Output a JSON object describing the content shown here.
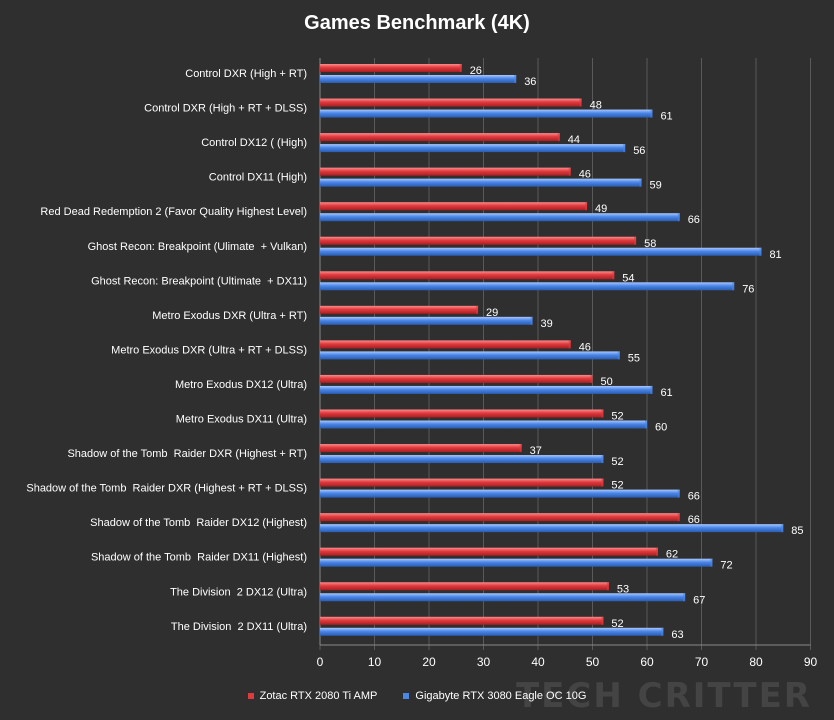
{
  "chart_data": {
    "type": "bar",
    "orientation": "horizontal",
    "title": "Games Benchmark (4K)",
    "xlabel": "",
    "ylabel": "",
    "xlim": [
      0,
      90
    ],
    "xticks": [
      0,
      10,
      20,
      30,
      40,
      50,
      60,
      70,
      80,
      90
    ],
    "grid": "vertical",
    "legend_position": "bottom",
    "categories": [
      "Control DXR (High + RT)",
      "Control DXR (High + RT + DLSS)",
      "Control DX12 ( (High)",
      "Control DX11 (High)",
      "Red Dead Redemption 2 (Favor Quality Highest Level)",
      "Ghost Recon: Breakpoint (Ulimate  + Vulkan)",
      "Ghost Recon: Breakpoint (Ultimate  + DX11)",
      "Metro Exodus DXR (Ultra + RT)",
      "Metro Exodus DXR (Ultra + RT + DLSS)",
      "Metro Exodus DX12 (Ultra)",
      "Metro Exodus DX11 (Ultra)",
      "Shadow of the Tomb  Raider DXR (Highest + RT)",
      "Shadow of the Tomb  Raider DXR (Highest + RT + DLSS)",
      "Shadow of the Tomb  Raider DX12 (Highest)",
      "Shadow of the Tomb  Raider DX11 (Highest)",
      "The Division  2 DX12 (Ultra)",
      "The Division  2 DX11 (Ultra)"
    ],
    "series": [
      {
        "name": "Zotac RTX 2080 Ti AMP",
        "color": "#e03a3e",
        "values": [
          26,
          48,
          44,
          46,
          49,
          58,
          54,
          29,
          46,
          50,
          52,
          37,
          52,
          66,
          62,
          53,
          52
        ]
      },
      {
        "name": "Gigabyte RTX  3080 Eagle  OC 10G",
        "color": "#4a86e8",
        "values": [
          36,
          61,
          56,
          59,
          66,
          81,
          76,
          39,
          55,
          61,
          60,
          52,
          66,
          85,
          72,
          67,
          63
        ]
      }
    ]
  },
  "colors": {
    "background": "#2f2f2f",
    "grid": "#5a5a5a",
    "text": "#ffffff"
  },
  "watermark": {
    "text": "TECH CRITTER"
  }
}
